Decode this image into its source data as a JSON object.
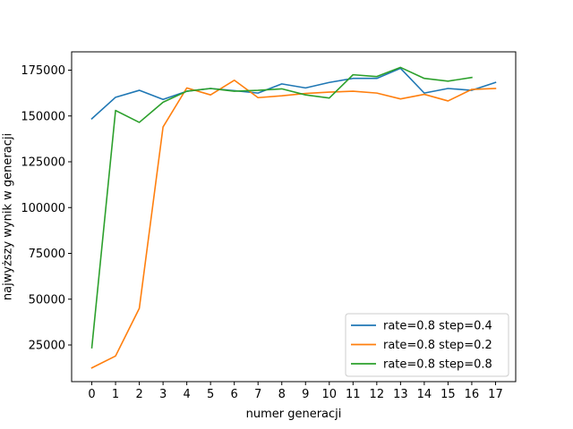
{
  "chart_data": {
    "type": "line",
    "title": "",
    "xlabel": "numer generacji",
    "ylabel": "najwyższy wynik w generacji",
    "xlim": [
      -0.85,
      17.85
    ],
    "ylim": [
      5000,
      185000
    ],
    "grid": false,
    "legend_position": "bottom-right",
    "x_ticks": [
      0,
      1,
      2,
      3,
      4,
      5,
      6,
      7,
      8,
      9,
      10,
      11,
      12,
      13,
      14,
      15,
      16,
      17
    ],
    "x_tick_labels": [
      "0",
      "1",
      "2",
      "3",
      "4",
      "5",
      "6",
      "7",
      "8",
      "9",
      "10",
      "11",
      "12",
      "13",
      "14",
      "15",
      "16",
      "17"
    ],
    "y_ticks": [
      25000,
      50000,
      75000,
      100000,
      125000,
      150000,
      175000
    ],
    "y_tick_labels": [
      "25000",
      "50000",
      "75000",
      "100000",
      "125000",
      "150000",
      "175000"
    ],
    "series": [
      {
        "name": "rate=0.8 step=0.4",
        "color": "#1f77b4",
        "x": [
          0,
          1,
          2,
          3,
          4,
          5,
          6,
          7,
          8,
          9,
          10,
          11,
          12,
          13,
          14,
          15,
          16,
          17
        ],
        "values": [
          148500,
          160200,
          164000,
          159000,
          163500,
          165000,
          163800,
          162500,
          167500,
          165300,
          168300,
          170500,
          170500,
          176000,
          162500,
          165000,
          164000,
          168300
        ]
      },
      {
        "name": "rate=0.8 step=0.2",
        "color": "#ff7f0e",
        "x": [
          0,
          1,
          2,
          3,
          4,
          5,
          6,
          7,
          8,
          9,
          10,
          11,
          12,
          13,
          14,
          15,
          16,
          17
        ],
        "values": [
          12500,
          19000,
          45000,
          144000,
          165300,
          161500,
          169500,
          160000,
          161000,
          162300,
          163000,
          163500,
          162500,
          159300,
          161800,
          158200,
          164500,
          165000
        ]
      },
      {
        "name": "rate=0.8 step=0.8",
        "color": "#2ca02c",
        "x": [
          0,
          1,
          2,
          3,
          4,
          5,
          6,
          7,
          8,
          9,
          10,
          11,
          12,
          13,
          14,
          15,
          16
        ],
        "values": [
          23500,
          153000,
          146500,
          157500,
          163500,
          165000,
          163500,
          164000,
          164800,
          161500,
          159800,
          172500,
          171500,
          176500,
          170500,
          169000,
          171000
        ]
      }
    ]
  }
}
